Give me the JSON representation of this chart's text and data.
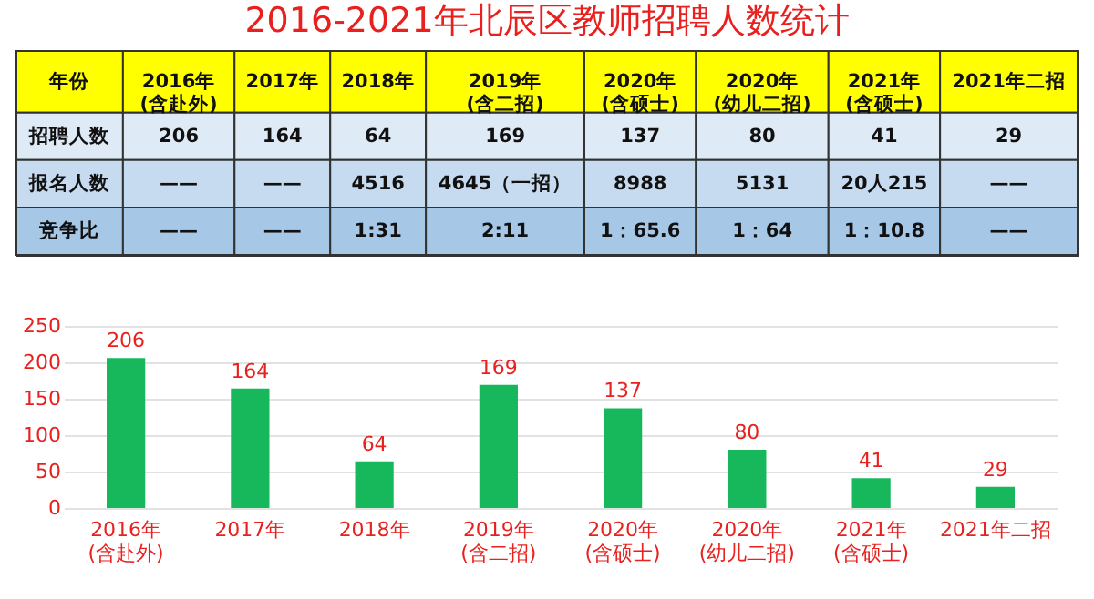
{
  "chart_data": [
    {
      "type": "other",
      "title": "2016-2021年北辰区教师招聘人数统计",
      "cell_labels": [
        [
          "年份",
          "2016年\n(含赴外)",
          "2017年",
          "2018年",
          "2019年\n(含二招)",
          "2020年\n(含硕士)",
          "2020年\n(幼儿二招)",
          "2021年\n(含硕士)",
          "2021年二招"
        ],
        [
          "招聘人数",
          "206",
          "164",
          "64",
          "169",
          "137",
          "80",
          "41",
          "29"
        ],
        [
          "报名人数",
          "——",
          "——",
          "4516",
          "4645（一招）",
          "8988",
          "5131",
          "20人215",
          "——"
        ],
        [
          "竞争比",
          "——",
          "——",
          "1:31",
          "2:11",
          "1：65.6",
          "1：64",
          "1：10.8",
          "——"
        ]
      ]
    },
    {
      "type": "bar",
      "categories": [
        "2016年\n(含赴外)",
        "2017年",
        "2018年",
        "2019年\n(含二招)",
        "2020年\n(含硕士)",
        "2020年\n(幼儿二招)",
        "2021年\n(含硕士)",
        "2021年二招"
      ],
      "values": [
        206,
        164,
        64,
        169,
        137,
        80,
        41,
        29
      ],
      "color": "#17b85c",
      "ylim": [
        0,
        250
      ],
      "yticks": [
        0,
        50,
        100,
        150,
        200,
        250
      ],
      "grid": "y",
      "data_labels": true
    }
  ]
}
